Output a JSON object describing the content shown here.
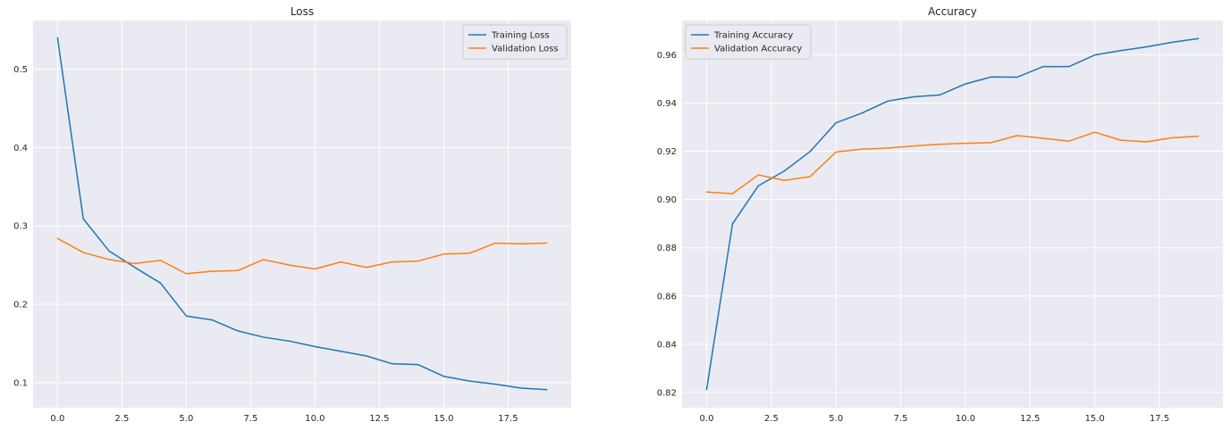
{
  "chart_data": [
    {
      "type": "line",
      "title": "Loss",
      "xlabel": "",
      "ylabel": "",
      "x": [
        0,
        1,
        2,
        3,
        4,
        5,
        6,
        7,
        8,
        9,
        10,
        11,
        12,
        13,
        14,
        15,
        16,
        17,
        18,
        19
      ],
      "xlim": [
        -0.95,
        19.95
      ],
      "ylim": [
        0.068,
        0.562
      ],
      "xticks": [
        0.0,
        2.5,
        5.0,
        7.5,
        10.0,
        12.5,
        15.0,
        17.5
      ],
      "xtick_labels": [
        "0.0",
        "2.5",
        "5.0",
        "7.5",
        "10.0",
        "12.5",
        "15.0",
        "17.5"
      ],
      "yticks": [
        0.1,
        0.2,
        0.3,
        0.4,
        0.5
      ],
      "ytick_labels": [
        "0.1",
        "0.2",
        "0.3",
        "0.4",
        "0.5"
      ],
      "grid": true,
      "legend": "top-right",
      "series": [
        {
          "name": "Training Loss",
          "color": "#1f77b4",
          "values": [
            0.54,
            0.309,
            0.268,
            0.247,
            0.227,
            0.185,
            0.18,
            0.166,
            0.158,
            0.153,
            0.146,
            0.14,
            0.134,
            0.124,
            0.123,
            0.108,
            0.102,
            0.098,
            0.093,
            0.091
          ]
        },
        {
          "name": "Validation Loss",
          "color": "#ff7f0e",
          "values": [
            0.284,
            0.266,
            0.257,
            0.252,
            0.256,
            0.239,
            0.242,
            0.243,
            0.257,
            0.25,
            0.245,
            0.254,
            0.247,
            0.254,
            0.255,
            0.264,
            0.265,
            0.278,
            0.277,
            0.278
          ]
        }
      ]
    },
    {
      "type": "line",
      "title": "Accuracy",
      "xlabel": "",
      "ylabel": "",
      "x": [
        0,
        1,
        2,
        3,
        4,
        5,
        6,
        7,
        8,
        9,
        10,
        11,
        12,
        13,
        14,
        15,
        16,
        17,
        18,
        19
      ],
      "xlim": [
        -0.95,
        19.95
      ],
      "ylim": [
        0.8137,
        0.9742
      ],
      "xticks": [
        0.0,
        2.5,
        5.0,
        7.5,
        10.0,
        12.5,
        15.0,
        17.5
      ],
      "xtick_labels": [
        "0.0",
        "2.5",
        "5.0",
        "7.5",
        "10.0",
        "12.5",
        "15.0",
        "17.5"
      ],
      "yticks": [
        0.82,
        0.84,
        0.86,
        0.88,
        0.9,
        0.92,
        0.94,
        0.96
      ],
      "ytick_labels": [
        "0.82",
        "0.84",
        "0.86",
        "0.88",
        "0.90",
        "0.92",
        "0.94",
        "0.96"
      ],
      "grid": true,
      "legend": "top-left",
      "series": [
        {
          "name": "Training Accuracy",
          "color": "#1f77b4",
          "values": [
            0.8213,
            0.8899,
            0.9057,
            0.9118,
            0.9199,
            0.9318,
            0.9358,
            0.9408,
            0.9426,
            0.9433,
            0.9479,
            0.9508,
            0.9507,
            0.9551,
            0.9551,
            0.9599,
            0.9617,
            0.9633,
            0.9652,
            0.9667
          ]
        },
        {
          "name": "Validation Accuracy",
          "color": "#ff7f0e",
          "values": [
            0.9031,
            0.9024,
            0.9102,
            0.9079,
            0.9095,
            0.9197,
            0.9209,
            0.9213,
            0.9222,
            0.9229,
            0.9233,
            0.9236,
            0.9265,
            0.9254,
            0.9242,
            0.9279,
            0.9246,
            0.9239,
            0.9256,
            0.9262
          ]
        }
      ]
    }
  ]
}
